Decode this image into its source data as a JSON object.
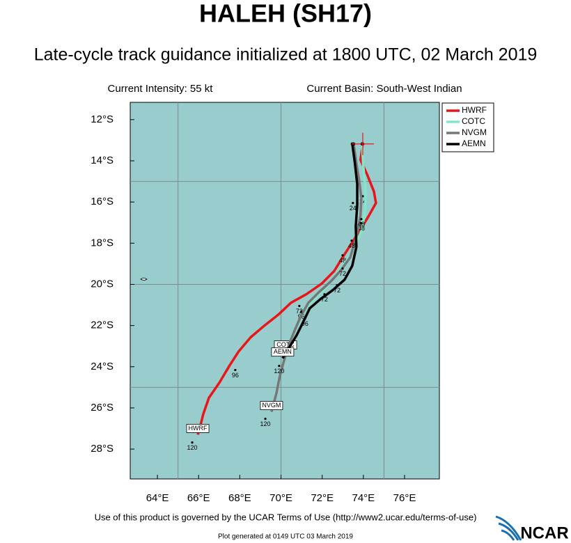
{
  "chart_data": {
    "type": "track_map",
    "title": "HALEH (SH17)",
    "subtitle": "Late-cycle track guidance initialized at 1800 UTC, 02 March 2019",
    "intensity": "Current Intensity: 55 kt",
    "basin": "Current Basin: South-West Indian",
    "xlim": [
      62.68,
      77.69
    ],
    "ylim": [
      -29.45,
      -11.16
    ],
    "xticks": [
      {
        "value": 64,
        "label": "64°E"
      },
      {
        "value": 66,
        "label": "66°E"
      },
      {
        "value": 68,
        "label": "68°E"
      },
      {
        "value": 70,
        "label": "70°E"
      },
      {
        "value": 72,
        "label": "72°E"
      },
      {
        "value": 74,
        "label": "74°E"
      },
      {
        "value": 76,
        "label": "76°E"
      }
    ],
    "yticks": [
      {
        "value": -12,
        "label": "12°S"
      },
      {
        "value": -14,
        "label": "14°S"
      },
      {
        "value": -16,
        "label": "16°S"
      },
      {
        "value": -18,
        "label": "18°S"
      },
      {
        "value": -20,
        "label": "20°S"
      },
      {
        "value": -22,
        "label": "22°S"
      },
      {
        "value": -24,
        "label": "24°S"
      },
      {
        "value": -26,
        "label": "26°S"
      },
      {
        "value": -28,
        "label": "28°S"
      }
    ],
    "grid_lon": [
      65,
      70,
      75
    ],
    "grid_lat": [
      -15,
      -20,
      -25
    ],
    "current_position": {
      "lon": 73.97,
      "lat": -13.18
    },
    "series": [
      {
        "name": "HWRF",
        "color": "#e8151b",
        "lon": [
          73.97,
          73.86,
          74.17,
          74.51,
          74.61,
          74.27,
          73.86,
          73.43,
          72.99,
          72.58,
          71.97,
          71.23,
          70.49,
          69.88,
          69.2,
          68.53,
          67.95,
          67.51,
          67.01,
          66.5,
          66.23,
          66.06,
          65.96
        ],
        "lat": [
          -13.18,
          -13.96,
          -14.64,
          -15.48,
          -16.05,
          -16.66,
          -17.34,
          -18.01,
          -18.69,
          -19.36,
          -19.97,
          -20.48,
          -20.89,
          -21.46,
          -22.0,
          -22.57,
          -23.25,
          -23.93,
          -24.77,
          -25.51,
          -26.29,
          -26.97,
          -27.3
        ],
        "tau_labels": [
          {
            "text": "24",
            "lon": 73.97,
            "lat": -15.72
          },
          {
            "text": "48",
            "lon": 72.99,
            "lat": -18.59
          },
          {
            "text": "72",
            "lon": 72.11,
            "lat": -20.48
          },
          {
            "text": "96",
            "lon": 67.78,
            "lat": -24.16
          },
          {
            "text": "120",
            "lon": 65.69,
            "lat": -27.68
          }
        ]
      },
      {
        "name": "COTC",
        "color": "#7fe8c8",
        "lon": [
          73.93,
          74.0,
          74.1,
          74.1,
          73.93,
          73.59,
          73.19,
          72.75,
          72.24,
          71.74,
          71.23,
          70.89,
          70.55,
          70.22
        ],
        "lat": [
          -13.18,
          -14.3,
          -15.31,
          -16.32,
          -17.34,
          -18.18,
          -18.86,
          -19.43,
          -20.11,
          -20.58,
          -21.12,
          -21.8,
          -22.47,
          -23.25
        ],
        "tau_labels": [
          {
            "text": "48",
            "lon": 73.9,
            "lat": -17.03
          },
          {
            "text": "72",
            "lon": 72.72,
            "lat": -20.04
          },
          {
            "text": "96",
            "lon": 70.99,
            "lat": -21.32
          }
        ]
      },
      {
        "name": "NVGM",
        "color": "#777777",
        "lon": [
          73.53,
          73.66,
          73.8,
          73.9,
          73.86,
          73.66,
          73.36,
          72.92,
          72.41,
          71.84,
          71.33,
          70.96,
          70.66,
          70.39,
          70.15,
          69.95,
          69.78,
          69.54
        ],
        "lat": [
          -13.18,
          -14.13,
          -14.97,
          -15.82,
          -16.66,
          -17.68,
          -18.69,
          -19.3,
          -19.87,
          -20.38,
          -20.89,
          -21.56,
          -22.24,
          -22.91,
          -23.69,
          -24.43,
          -25.28,
          -26.19
        ],
        "tau_labels": [
          {
            "text": "24",
            "lon": 73.49,
            "lat": -16.05
          },
          {
            "text": "48",
            "lon": 73.43,
            "lat": -17.88
          },
          {
            "text": "72",
            "lon": 70.89,
            "lat": -21.05
          },
          {
            "text": "120",
            "lon": 69.24,
            "lat": -26.53
          }
        ]
      },
      {
        "name": "AEMN",
        "color": "#000000",
        "lon": [
          73.46,
          73.59,
          73.7,
          73.7,
          73.63,
          73.66,
          73.46,
          73.09,
          72.51,
          71.91,
          71.4,
          71.09,
          70.76,
          70.39,
          70.08
        ],
        "lat": [
          -13.18,
          -14.13,
          -15.14,
          -16.16,
          -17.17,
          -18.18,
          -19.09,
          -19.77,
          -20.28,
          -20.72,
          -21.16,
          -21.8,
          -22.47,
          -23.08,
          -23.59
        ],
        "tau_labels": [
          {
            "text": "48",
            "lon": 73.9,
            "lat": -16.83
          },
          {
            "text": "72",
            "lon": 72.99,
            "lat": -19.23
          },
          {
            "text": "96",
            "lon": 71.16,
            "lat": -21.66
          },
          {
            "text": "120",
            "lon": 69.91,
            "lat": -23.96
          }
        ]
      }
    ],
    "footer": "Use of this product is governed by the UCAR Terms of Use (http://www2.ucar.edu/terms-of-use)",
    "generated": "Plot generated at 0149 UTC   03 March 2019",
    "logo": "NCAR"
  }
}
